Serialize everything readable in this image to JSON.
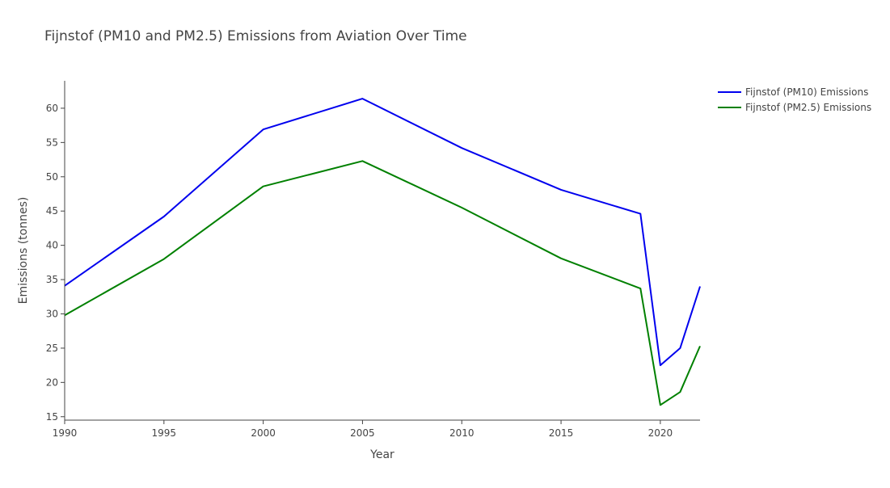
{
  "chart_data": {
    "type": "line",
    "title": "Fijnstof (PM10 and PM2.5) Emissions from Aviation Over Time",
    "xlabel": "Year",
    "ylabel": "Emissions (tonnes)",
    "x": [
      1990,
      1995,
      2000,
      2005,
      2010,
      2015,
      2019,
      2020,
      2021,
      2022
    ],
    "xlim": [
      1990,
      2022
    ],
    "ylim": [
      14.5,
      64
    ],
    "x_ticks": [
      1990,
      1995,
      2000,
      2005,
      2010,
      2015,
      2020
    ],
    "y_ticks": [
      15,
      20,
      25,
      30,
      35,
      40,
      45,
      50,
      55,
      60
    ],
    "grid": false,
    "legend_position": "top-right",
    "series": [
      {
        "name": "Fijnstof (PM10) Emissions",
        "color": "#0000ee",
        "values": [
          34.1,
          44.2,
          56.9,
          61.4,
          54.2,
          48.1,
          44.6,
          22.5,
          25.0,
          34.0
        ]
      },
      {
        "name": "Fijnstof (PM2.5) Emissions",
        "color": "#008000",
        "values": [
          29.8,
          38.0,
          48.6,
          52.3,
          45.5,
          38.1,
          33.7,
          16.7,
          18.6,
          25.3
        ]
      }
    ]
  }
}
